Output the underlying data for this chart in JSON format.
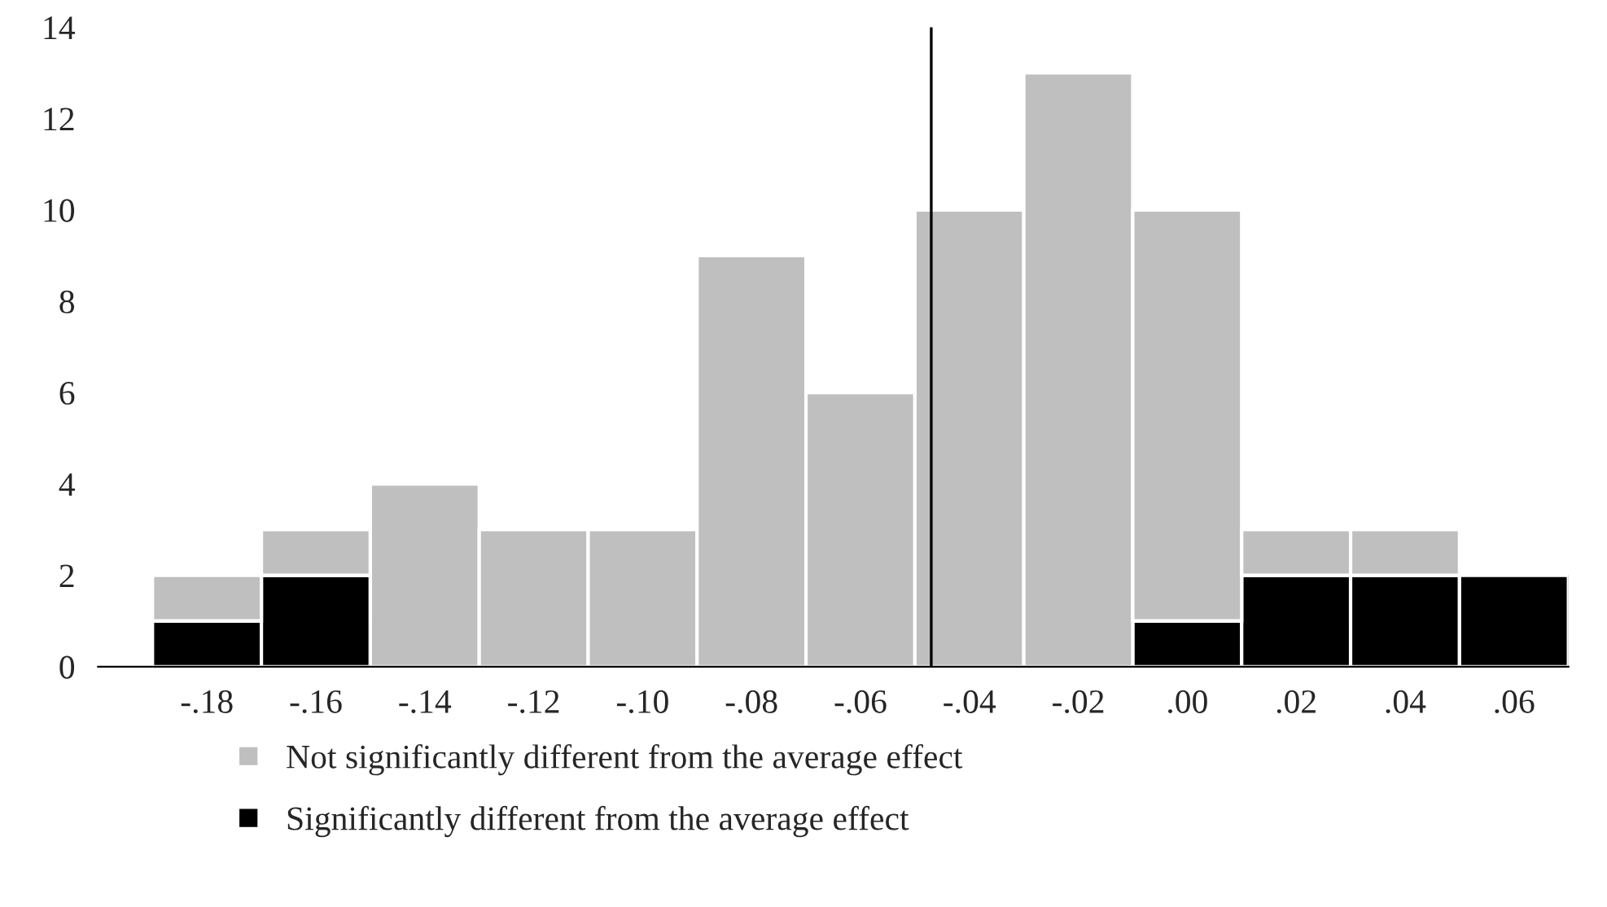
{
  "chart_data": {
    "type": "bar",
    "stacked": true,
    "x": [
      -0.18,
      -0.16,
      -0.14,
      -0.12,
      -0.1,
      -0.08,
      -0.06,
      -0.04,
      -0.02,
      0.0,
      0.02,
      0.04,
      0.06
    ],
    "series": [
      {
        "name": "Significantly different from the average effect",
        "color": "#000000",
        "values": [
          1,
          2,
          0,
          0,
          0,
          0,
          0,
          0,
          0,
          1,
          2,
          2,
          2
        ]
      },
      {
        "name": "Not significantly different from the average effect",
        "color": "#bfbfbf",
        "values": [
          1,
          1,
          4,
          3,
          3,
          9,
          6,
          10,
          13,
          9,
          1,
          1,
          0
        ]
      }
    ],
    "xlim": [
      -0.2,
      0.07
    ],
    "xticks": [
      {
        "value": -0.18,
        "label": "-.18"
      },
      {
        "value": -0.16,
        "label": "-.16"
      },
      {
        "value": -0.14,
        "label": "-.14"
      },
      {
        "value": -0.12,
        "label": "-.12"
      },
      {
        "value": -0.1,
        "label": "-.10"
      },
      {
        "value": -0.08,
        "label": "-.08"
      },
      {
        "value": -0.06,
        "label": "-.06"
      },
      {
        "value": -0.04,
        "label": "-.04"
      },
      {
        "value": -0.02,
        "label": "-.02"
      },
      {
        "value": 0.0,
        "label": ".00"
      },
      {
        "value": 0.02,
        "label": ".02"
      },
      {
        "value": 0.04,
        "label": ".04"
      },
      {
        "value": 0.06,
        "label": ".06"
      }
    ],
    "ylim": [
      0,
      14
    ],
    "yticks": [
      0,
      2,
      4,
      6,
      8,
      10,
      12,
      14
    ],
    "ref_lines": [
      {
        "axis": "x",
        "value": -0.047,
        "color": "#000000"
      }
    ],
    "legend": "bottom",
    "grid": false
  }
}
